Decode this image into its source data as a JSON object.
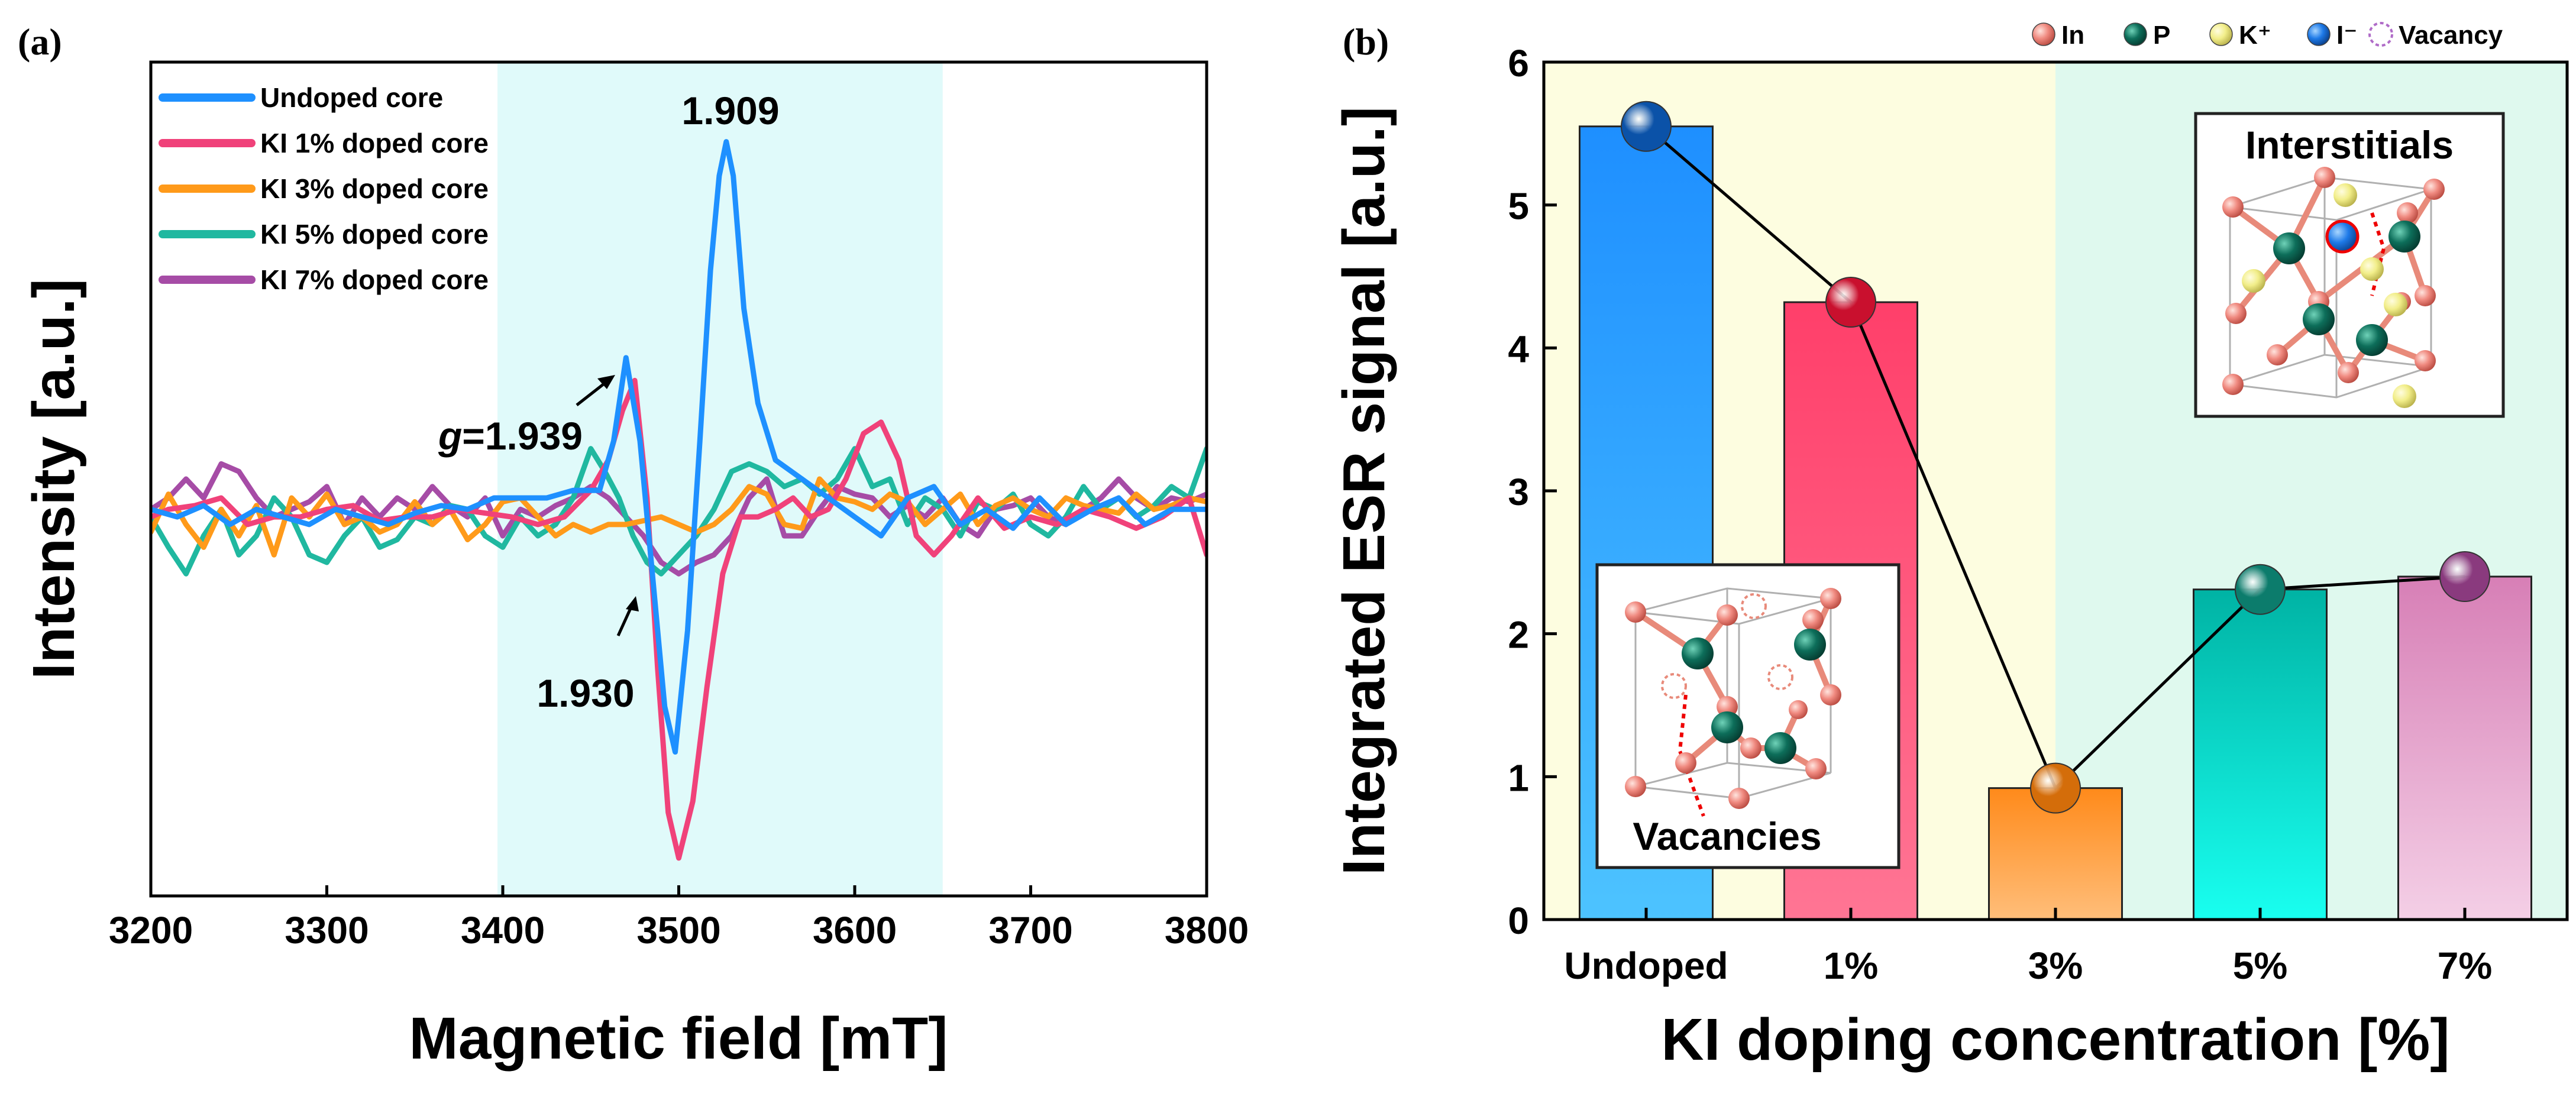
{
  "chart_data": [
    {
      "panel": "(a)",
      "type": "line",
      "xlabel": "Magnetic field [mT]",
      "ylabel": "Intensity [a.u.]",
      "xlim": [
        3200,
        3800
      ],
      "ylim": [
        -1.0,
        1.2
      ],
      "xticks": [
        "3200",
        "3300",
        "3400",
        "3500",
        "3600",
        "3700",
        "3800"
      ],
      "yticks_shown": false,
      "highlight_region": {
        "x_from": 3397,
        "x_to": 3650,
        "color": "#e0fafa"
      },
      "annotations": [
        {
          "text": "1.909",
          "x": 3527,
          "y": 1.0
        },
        {
          "text_prefix": "g",
          "text": "=1.939",
          "x": 3470,
          "y": 0.42
        },
        {
          "text": "1.930",
          "x": 3478,
          "y": -0.35
        }
      ],
      "series": [
        {
          "name": "Undoped core",
          "color": "#1e90ff",
          "x": [
            3200,
            3215,
            3230,
            3245,
            3260,
            3275,
            3290,
            3305,
            3320,
            3335,
            3350,
            3365,
            3380,
            3395,
            3410,
            3425,
            3440,
            3455,
            3463,
            3470,
            3478,
            3485,
            3492,
            3498,
            3505,
            3512,
            3518,
            3523,
            3527,
            3531,
            3537,
            3545,
            3555,
            3570,
            3585,
            3600,
            3615,
            3630,
            3645,
            3660,
            3675,
            3690,
            3705,
            3720,
            3735,
            3750,
            3765,
            3780,
            3800
          ],
          "y": [
            0.02,
            0.0,
            0.03,
            -0.02,
            0.02,
            0.0,
            -0.02,
            0.02,
            0.0,
            -0.02,
            0.01,
            0.03,
            0.02,
            0.05,
            0.05,
            0.05,
            0.07,
            0.07,
            0.2,
            0.42,
            0.2,
            -0.15,
            -0.5,
            -0.62,
            -0.3,
            0.2,
            0.65,
            0.9,
            0.99,
            0.9,
            0.55,
            0.3,
            0.15,
            0.1,
            0.05,
            0.0,
            -0.05,
            0.05,
            0.08,
            -0.02,
            0.02,
            -0.03,
            0.05,
            -0.02,
            0.02,
            0.05,
            -0.02,
            0.02,
            0.02
          ]
        },
        {
          "name": "KI 1% doped core",
          "color": "#f0427a",
          "x": [
            3200,
            3210,
            3225,
            3240,
            3255,
            3270,
            3285,
            3300,
            3315,
            3330,
            3345,
            3360,
            3375,
            3390,
            3405,
            3420,
            3435,
            3450,
            3460,
            3468,
            3475,
            3482,
            3488,
            3494,
            3500,
            3508,
            3516,
            3525,
            3535,
            3545,
            3555,
            3565,
            3575,
            3585,
            3595,
            3605,
            3615,
            3625,
            3635,
            3645,
            3655,
            3670,
            3685,
            3700,
            3715,
            3730,
            3745,
            3760,
            3775,
            3790,
            3800
          ],
          "y": [
            0.0,
            0.02,
            0.03,
            0.05,
            -0.02,
            0.0,
            0.0,
            0.02,
            0.03,
            -0.01,
            0.0,
            0.0,
            0.02,
            0.01,
            0.0,
            -0.02,
            0.0,
            0.07,
            0.15,
            0.28,
            0.36,
            0.05,
            -0.4,
            -0.78,
            -0.9,
            -0.75,
            -0.45,
            -0.15,
            0.0,
            0.0,
            0.02,
            0.05,
            0.0,
            0.02,
            0.1,
            0.22,
            0.25,
            0.15,
            -0.05,
            -0.1,
            -0.05,
            0.05,
            -0.03,
            0.0,
            -0.02,
            0.02,
            0.0,
            -0.03,
            0.0,
            0.05,
            -0.1
          ]
        },
        {
          "name": "KI 3% doped core",
          "color": "#ff9a1a",
          "x": [
            3200,
            3210,
            3220,
            3230,
            3240,
            3250,
            3260,
            3270,
            3280,
            3290,
            3300,
            3310,
            3320,
            3330,
            3340,
            3350,
            3360,
            3370,
            3380,
            3390,
            3400,
            3410,
            3420,
            3430,
            3440,
            3450,
            3460,
            3470,
            3480,
            3490,
            3500,
            3510,
            3520,
            3530,
            3540,
            3550,
            3560,
            3570,
            3580,
            3590,
            3600,
            3610,
            3620,
            3630,
            3640,
            3650,
            3660,
            3670,
            3680,
            3690,
            3700,
            3710,
            3720,
            3730,
            3740,
            3750,
            3760,
            3770,
            3780,
            3790,
            3800
          ],
          "y": [
            -0.04,
            0.06,
            -0.02,
            -0.08,
            0.02,
            -0.05,
            0.03,
            -0.1,
            0.05,
            0.0,
            0.06,
            -0.02,
            0.0,
            -0.04,
            -0.02,
            0.04,
            -0.02,
            0.02,
            -0.06,
            -0.02,
            0.04,
            0.05,
            0.0,
            -0.05,
            -0.02,
            -0.04,
            -0.02,
            -0.02,
            -0.01,
            0.0,
            -0.02,
            -0.04,
            -0.02,
            0.02,
            0.08,
            0.06,
            -0.02,
            -0.03,
            0.1,
            0.05,
            0.04,
            0.02,
            0.06,
            0.04,
            -0.02,
            0.02,
            0.06,
            -0.02,
            0.03,
            0.05,
            0.02,
            0.0,
            0.05,
            0.03,
            0.02,
            0.01,
            0.06,
            0.02,
            0.03,
            0.05,
            0.04
          ]
        },
        {
          "name": "KI 5% doped core",
          "color": "#20b8a0",
          "x": [
            3200,
            3210,
            3220,
            3230,
            3240,
            3250,
            3260,
            3270,
            3280,
            3290,
            3300,
            3310,
            3320,
            3330,
            3340,
            3350,
            3360,
            3370,
            3380,
            3390,
            3400,
            3410,
            3420,
            3430,
            3440,
            3450,
            3458,
            3466,
            3474,
            3482,
            3490,
            3500,
            3510,
            3520,
            3530,
            3540,
            3550,
            3560,
            3570,
            3580,
            3590,
            3600,
            3610,
            3620,
            3630,
            3640,
            3650,
            3660,
            3670,
            3680,
            3690,
            3700,
            3710,
            3720,
            3730,
            3740,
            3750,
            3760,
            3770,
            3780,
            3790,
            3800
          ],
          "y": [
            0.0,
            -0.08,
            -0.15,
            -0.05,
            0.02,
            -0.1,
            -0.05,
            0.05,
            0.0,
            -0.1,
            -0.12,
            -0.05,
            0.0,
            -0.08,
            -0.06,
            0.0,
            -0.02,
            0.03,
            0.02,
            -0.05,
            -0.08,
            0.0,
            -0.05,
            -0.02,
            0.05,
            0.18,
            0.12,
            0.05,
            -0.05,
            -0.12,
            -0.15,
            -0.1,
            -0.05,
            0.02,
            0.12,
            0.14,
            0.12,
            0.08,
            0.1,
            0.06,
            0.1,
            0.18,
            0.08,
            0.1,
            -0.02,
            0.05,
            0.02,
            -0.05,
            0.04,
            0.02,
            0.06,
            -0.02,
            -0.05,
            0.0,
            0.08,
            0.02,
            0.05,
            0.0,
            0.03,
            0.08,
            0.05,
            0.18
          ]
        },
        {
          "name": "KI 7% doped core",
          "color": "#a64ca6",
          "x": [
            3200,
            3210,
            3220,
            3230,
            3240,
            3250,
            3260,
            3270,
            3280,
            3290,
            3300,
            3310,
            3320,
            3330,
            3340,
            3350,
            3360,
            3370,
            3380,
            3390,
            3400,
            3410,
            3420,
            3430,
            3440,
            3450,
            3460,
            3470,
            3480,
            3490,
            3500,
            3510,
            3520,
            3530,
            3540,
            3550,
            3560,
            3570,
            3580,
            3590,
            3600,
            3610,
            3620,
            3630,
            3640,
            3650,
            3660,
            3670,
            3680,
            3690,
            3700,
            3710,
            3720,
            3730,
            3740,
            3750,
            3760,
            3770,
            3780,
            3790,
            3800
          ],
          "y": [
            0.02,
            0.05,
            0.1,
            0.05,
            0.14,
            0.12,
            0.05,
            0.0,
            0.02,
            0.04,
            0.08,
            -0.02,
            0.05,
            0.0,
            0.05,
            0.02,
            0.08,
            0.03,
            0.0,
            0.05,
            -0.05,
            0.02,
            0.0,
            0.03,
            0.05,
            0.08,
            0.05,
            0.0,
            -0.05,
            -0.12,
            -0.15,
            -0.12,
            -0.1,
            -0.05,
            0.05,
            0.1,
            -0.05,
            -0.05,
            0.02,
            0.08,
            0.06,
            0.05,
            0.0,
            0.03,
            0.0,
            0.05,
            -0.02,
            -0.05,
            0.02,
            0.03,
            0.05,
            0.0,
            -0.02,
            0.02,
            0.05,
            0.1,
            0.05,
            0.02,
            0.05,
            0.04,
            0.06
          ]
        }
      ]
    },
    {
      "panel": "(b)",
      "type": "bar",
      "xlabel": "KI doping concentration [%]",
      "ylabel": "Integrated ESR signal [a.u.]",
      "ylim": [
        0,
        6
      ],
      "yticks": [
        "0",
        "1",
        "2",
        "3",
        "4",
        "5",
        "6"
      ],
      "categories": [
        "Undoped",
        "1%",
        "3%",
        "5%",
        "7%"
      ],
      "values": [
        5.55,
        4.32,
        0.92,
        2.31,
        2.4
      ],
      "bar_colors": [
        [
          "#1e8fff",
          "#4dc3ff"
        ],
        [
          "#ff3f6a",
          "#ff7594"
        ],
        [
          "#ff8a1a",
          "#ffbe7a"
        ],
        [
          "#00b3a4",
          "#19fff0"
        ],
        [
          "#d77fb6",
          "#f4cfe6"
        ]
      ],
      "marker_colors": [
        "#0b52a8",
        "#c9102e",
        "#d46d0a",
        "#0c7c6c",
        "#8a3a7e"
      ],
      "background_regions": [
        {
          "from_category": "Undoped",
          "to_category": "3%",
          "color": "#fdfde0"
        },
        {
          "from_category": "3%",
          "to_category": "7%",
          "color": "#dff9ee"
        }
      ],
      "legend": [
        "In",
        "P",
        "K⁺",
        "I⁻",
        "Vacancy"
      ],
      "legend_colors": [
        "#f08a80",
        "#0d6e5a",
        "#f2ee8a",
        "#1e7ae8",
        "#b06cc8"
      ],
      "insets": [
        "Interstitials",
        "Vacancies"
      ]
    }
  ]
}
